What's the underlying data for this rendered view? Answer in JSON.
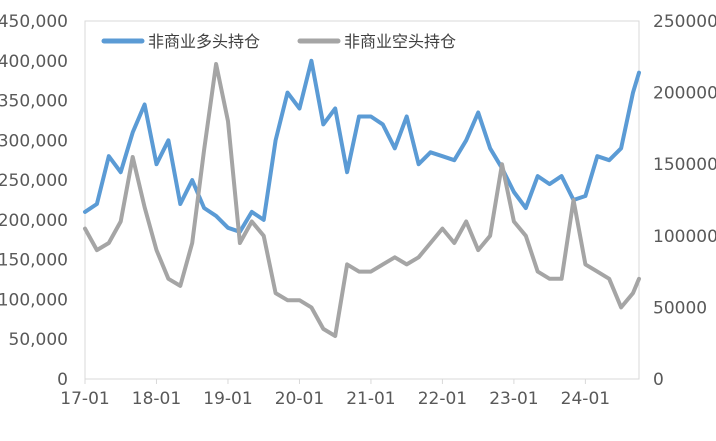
{
  "chart_data": {
    "type": "line",
    "title": "",
    "x_tick_labels": [
      "17-01",
      "18-01",
      "19-01",
      "20-01",
      "21-01",
      "22-01",
      "23-01",
      "24-01"
    ],
    "x_range": [
      "2017-01",
      "2024-10"
    ],
    "y_left": {
      "range": [
        0,
        450000
      ],
      "tick_labels": [
        "0",
        "50,000",
        "100,000",
        "150,000",
        "200,000",
        "250,000",
        "300,000",
        "350,000",
        "400,000",
        "450,000"
      ]
    },
    "y_right": {
      "range": [
        0,
        250000
      ],
      "tick_labels": [
        "0",
        "50000",
        "100000",
        "150000",
        "200000",
        "250000"
      ]
    },
    "grid": false,
    "legend_position": "top-left",
    "series": [
      {
        "name": "非商业多头持仓",
        "axis": "left",
        "color": "#5b9bd5",
        "x": [
          "2017-01",
          "2017-03",
          "2017-05",
          "2017-07",
          "2017-09",
          "2017-11",
          "2018-01",
          "2018-03",
          "2018-05",
          "2018-07",
          "2018-09",
          "2018-11",
          "2019-01",
          "2019-03",
          "2019-05",
          "2019-07",
          "2019-09",
          "2019-11",
          "2020-01",
          "2020-03",
          "2020-05",
          "2020-07",
          "2020-09",
          "2020-11",
          "2021-01",
          "2021-03",
          "2021-05",
          "2021-07",
          "2021-09",
          "2021-11",
          "2022-01",
          "2022-03",
          "2022-05",
          "2022-07",
          "2022-09",
          "2022-11",
          "2023-01",
          "2023-03",
          "2023-05",
          "2023-07",
          "2023-09",
          "2023-11",
          "2024-01",
          "2024-03",
          "2024-05",
          "2024-07",
          "2024-09",
          "2024-10"
        ],
        "y": [
          210000,
          220000,
          280000,
          260000,
          310000,
          345000,
          270000,
          300000,
          220000,
          250000,
          215000,
          205000,
          190000,
          185000,
          210000,
          200000,
          300000,
          360000,
          340000,
          400000,
          320000,
          340000,
          260000,
          330000,
          330000,
          320000,
          290000,
          330000,
          270000,
          285000,
          280000,
          275000,
          300000,
          335000,
          290000,
          265000,
          235000,
          215000,
          255000,
          245000,
          255000,
          225000,
          230000,
          280000,
          275000,
          290000,
          360000,
          385000
        ]
      },
      {
        "name": "非商业空头持仓",
        "axis": "right",
        "color": "#a5a5a5",
        "x": [
          "2017-01",
          "2017-03",
          "2017-05",
          "2017-07",
          "2017-09",
          "2017-11",
          "2018-01",
          "2018-03",
          "2018-05",
          "2018-07",
          "2018-09",
          "2018-11",
          "2019-01",
          "2019-03",
          "2019-05",
          "2019-07",
          "2019-09",
          "2019-11",
          "2020-01",
          "2020-03",
          "2020-05",
          "2020-07",
          "2020-09",
          "2020-11",
          "2021-01",
          "2021-03",
          "2021-05",
          "2021-07",
          "2021-09",
          "2021-11",
          "2022-01",
          "2022-03",
          "2022-05",
          "2022-07",
          "2022-09",
          "2022-11",
          "2023-01",
          "2023-03",
          "2023-05",
          "2023-07",
          "2023-09",
          "2023-11",
          "2024-01",
          "2024-03",
          "2024-05",
          "2024-07",
          "2024-09",
          "2024-10"
        ],
        "y": [
          105000,
          90000,
          95000,
          110000,
          155000,
          120000,
          90000,
          70000,
          65000,
          95000,
          160000,
          220000,
          180000,
          95000,
          110000,
          100000,
          60000,
          55000,
          55000,
          50000,
          35000,
          30000,
          80000,
          75000,
          75000,
          80000,
          85000,
          80000,
          85000,
          95000,
          105000,
          95000,
          110000,
          90000,
          100000,
          150000,
          110000,
          100000,
          75000,
          70000,
          70000,
          125000,
          80000,
          75000,
          70000,
          50000,
          60000,
          70000
        ]
      }
    ]
  }
}
